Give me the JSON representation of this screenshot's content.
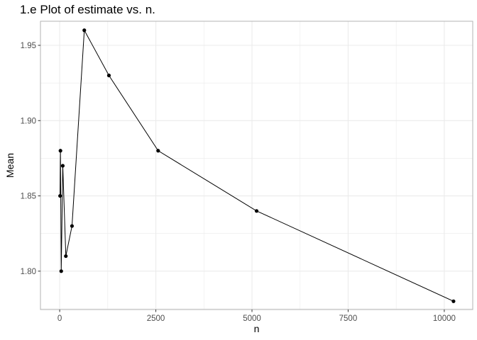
{
  "chart_data": {
    "type": "line",
    "title": "1.e Plot of estimate vs. n.",
    "xlabel": "n",
    "ylabel": "Mean",
    "xlim": [
      -500,
      10740
    ],
    "ylim": [
      1.7745,
      1.966
    ],
    "x_ticks": [
      0,
      2500,
      5000,
      7500,
      10000
    ],
    "x_tick_labels": [
      "0",
      "2500",
      "5000",
      "7500",
      "10000"
    ],
    "y_ticks": [
      1.8,
      1.85,
      1.9,
      1.95
    ],
    "y_tick_labels": [
      "1.80",
      "1.85",
      "1.90",
      "1.95"
    ],
    "grid": true,
    "legend": "none",
    "series": [
      {
        "x": [
          10,
          20,
          40,
          80,
          160,
          320,
          640,
          1280,
          2560,
          5120,
          10240
        ],
        "y": [
          1.85,
          1.88,
          1.8,
          1.87,
          1.81,
          1.83,
          1.96,
          1.93,
          1.88,
          1.84,
          1.78
        ]
      }
    ],
    "colors": {
      "line": "#000000",
      "point": "#000000",
      "grid": "#ebebeb",
      "border": "#b3b3b3",
      "text": "#4d4d4d"
    }
  }
}
